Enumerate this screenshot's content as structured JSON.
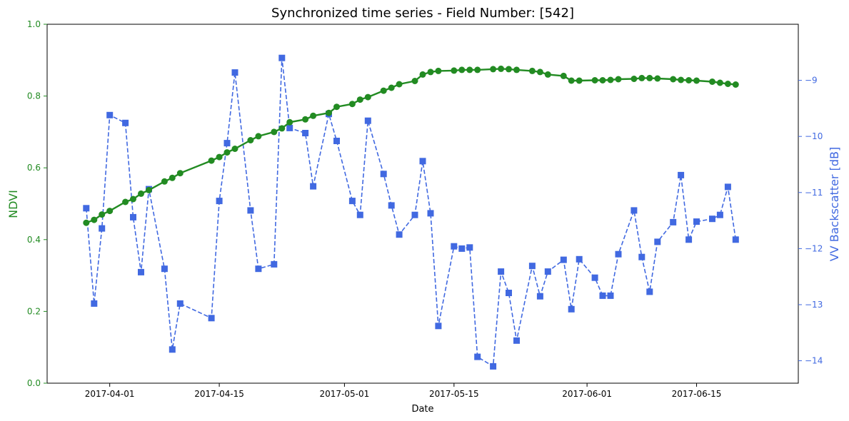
{
  "chart_data": {
    "type": "line",
    "title": "Synchronized time series - Field Number: [542]",
    "xlabel": "Date",
    "ylabel_left": "NDVI",
    "ylabel_right": "VV Backscatter [dB]",
    "x_ticks": [
      "2017-04-01",
      "2017-04-15",
      "2017-05-01",
      "2017-05-15",
      "2017-06-01",
      "2017-06-15"
    ],
    "x_range": [
      "2017-03-24",
      "2017-06-28"
    ],
    "ylim_left": [
      0.0,
      1.0
    ],
    "y_ticks_left": [
      "0.0",
      "0.2",
      "0.4",
      "0.6",
      "0.8",
      "1.0"
    ],
    "ylim_right": [
      -14.4,
      -8.0
    ],
    "y_ticks_right": [
      "−14",
      "−13",
      "−12",
      "−11",
      "−10",
      "−9"
    ],
    "y_tick_values_right": [
      -14,
      -13,
      -12,
      -11,
      -10,
      -9
    ],
    "grid": false,
    "series": [
      {
        "name": "NDVI",
        "axis": "left",
        "color": "#228b22",
        "style": "solid",
        "marker": "circle",
        "x": [
          "2017-03-29",
          "2017-03-30",
          "2017-03-31",
          "2017-04-01",
          "2017-04-03",
          "2017-04-04",
          "2017-04-05",
          "2017-04-06",
          "2017-04-08",
          "2017-04-09",
          "2017-04-10",
          "2017-04-14",
          "2017-04-15",
          "2017-04-16",
          "2017-04-17",
          "2017-04-19",
          "2017-04-20",
          "2017-04-22",
          "2017-04-23",
          "2017-04-24",
          "2017-04-26",
          "2017-04-27",
          "2017-04-29",
          "2017-04-30",
          "2017-05-02",
          "2017-05-03",
          "2017-05-04",
          "2017-05-06",
          "2017-05-07",
          "2017-05-08",
          "2017-05-10",
          "2017-05-11",
          "2017-05-12",
          "2017-05-13",
          "2017-05-15",
          "2017-05-16",
          "2017-05-17",
          "2017-05-18",
          "2017-05-20",
          "2017-05-21",
          "2017-05-22",
          "2017-05-23",
          "2017-05-25",
          "2017-05-26",
          "2017-05-27",
          "2017-05-29",
          "2017-05-30",
          "2017-05-31",
          "2017-06-02",
          "2017-06-03",
          "2017-06-04",
          "2017-06-05",
          "2017-06-07",
          "2017-06-08",
          "2017-06-09",
          "2017-06-10",
          "2017-06-12",
          "2017-06-13",
          "2017-06-14",
          "2017-06-15",
          "2017-06-17",
          "2017-06-18",
          "2017-06-19",
          "2017-06-20"
        ],
        "values": [
          0.447,
          0.455,
          0.47,
          0.48,
          0.505,
          0.513,
          0.528,
          0.538,
          0.562,
          0.572,
          0.585,
          0.62,
          0.63,
          0.643,
          0.653,
          0.677,
          0.688,
          0.7,
          0.71,
          0.727,
          0.735,
          0.745,
          0.753,
          0.77,
          0.778,
          0.79,
          0.797,
          0.815,
          0.823,
          0.833,
          0.842,
          0.86,
          0.867,
          0.87,
          0.871,
          0.873,
          0.873,
          0.873,
          0.875,
          0.876,
          0.875,
          0.873,
          0.87,
          0.867,
          0.86,
          0.856,
          0.843,
          0.843,
          0.844,
          0.844,
          0.845,
          0.847,
          0.848,
          0.85,
          0.85,
          0.849,
          0.847,
          0.845,
          0.844,
          0.843,
          0.84,
          0.837,
          0.834,
          0.832
        ]
      },
      {
        "name": "VV Backscatter [dB]",
        "axis": "right",
        "color": "#4169e1",
        "style": "dashed",
        "marker": "square",
        "x": [
          "2017-03-29",
          "2017-03-30",
          "2017-03-31",
          "2017-04-01",
          "2017-04-03",
          "2017-04-04",
          "2017-04-05",
          "2017-04-06",
          "2017-04-08",
          "2017-04-09",
          "2017-04-10",
          "2017-04-14",
          "2017-04-15",
          "2017-04-16",
          "2017-04-17",
          "2017-04-19",
          "2017-04-20",
          "2017-04-22",
          "2017-04-23",
          "2017-04-24",
          "2017-04-26",
          "2017-04-27",
          "2017-04-29",
          "2017-04-30",
          "2017-05-02",
          "2017-05-03",
          "2017-05-04",
          "2017-05-06",
          "2017-05-07",
          "2017-05-08",
          "2017-05-10",
          "2017-05-11",
          "2017-05-12",
          "2017-05-13",
          "2017-05-15",
          "2017-05-16",
          "2017-05-17",
          "2017-05-18",
          "2017-05-20",
          "2017-05-21",
          "2017-05-22",
          "2017-05-23",
          "2017-05-25",
          "2017-05-26",
          "2017-05-27",
          "2017-05-29",
          "2017-05-30",
          "2017-05-31",
          "2017-06-02",
          "2017-06-03",
          "2017-06-04",
          "2017-06-05",
          "2017-06-07",
          "2017-06-08",
          "2017-06-09",
          "2017-06-10",
          "2017-06-12",
          "2017-06-13",
          "2017-06-14",
          "2017-06-15",
          "2017-06-17",
          "2017-06-18",
          "2017-06-19",
          "2017-06-20"
        ],
        "values": [
          -11.28,
          -12.98,
          -11.64,
          -9.62,
          -9.76,
          -11.44,
          -12.42,
          -10.94,
          -12.36,
          -13.8,
          -12.98,
          -13.24,
          -11.15,
          -10.12,
          -8.86,
          -11.32,
          -12.36,
          -12.28,
          -8.6,
          -9.85,
          -9.94,
          -10.89,
          -9.6,
          -10.08,
          -11.15,
          -11.4,
          -9.72,
          -10.67,
          -11.23,
          -11.75,
          -11.4,
          -10.44,
          -11.37,
          -13.38,
          -11.96,
          -12.0,
          -11.98,
          -13.93,
          -14.1,
          -12.41,
          -12.79,
          -13.64,
          -12.31,
          -12.85,
          -12.41,
          -12.2,
          -13.08,
          -12.19,
          -12.52,
          -12.84,
          -12.84,
          -12.1,
          -11.32,
          -12.15,
          -12.77,
          -11.88,
          -11.53,
          -10.69,
          -11.84,
          -11.52,
          -11.47,
          -11.4,
          -10.9,
          -11.84
        ]
      }
    ]
  }
}
